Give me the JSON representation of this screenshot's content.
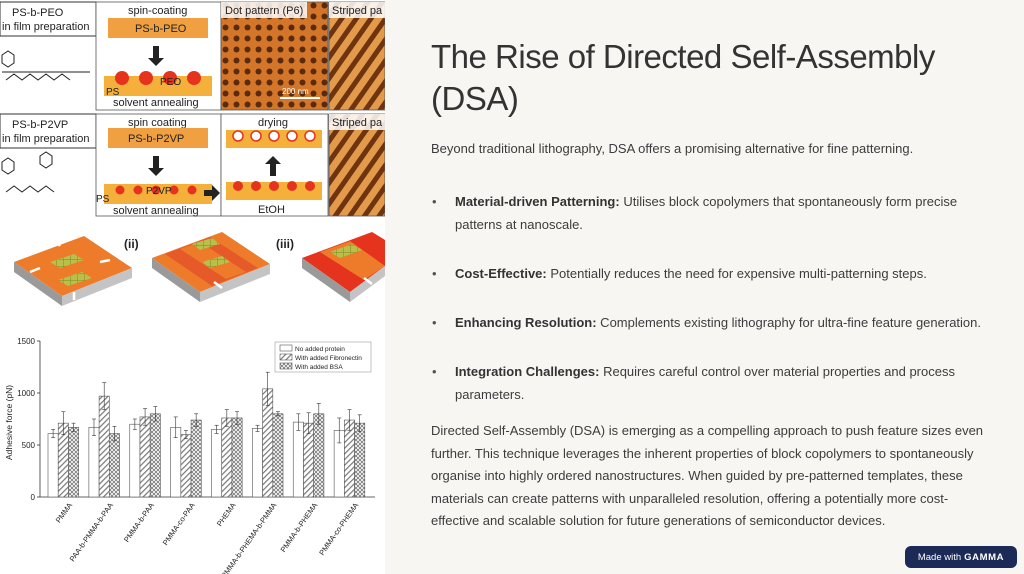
{
  "slide": {
    "title": "The Rise of Directed Self-Assembly (DSA)",
    "subtitle": "Beyond traditional lithography, DSA offers a promising alternative for fine patterning.",
    "bullets": [
      {
        "label": "Material-driven Patterning:",
        "text": " Utilises block copolymers that spontaneously form precise patterns at nanoscale."
      },
      {
        "label": "Cost-Effective:",
        "text": " Potentially reduces the need for expensive multi-patterning steps."
      },
      {
        "label": "Enhancing Resolution:",
        "text": " Complements existing lithography for ultra-fine feature generation."
      },
      {
        "label": "Integration Challenges:",
        "text": " Requires careful control over material properties and process parameters."
      }
    ],
    "paragraph": "Directed Self-Assembly (DSA) is emerging as a compelling approach to push feature sizes even further. This technique leverages the inherent properties of block copolymers to spontaneously organise into highly ordered nanostructures. When guided by pre-patterned templates, these materials can create patterns with unparalleled resolution, offering a potentially more cost-effective and scalable solution for future generations of semiconductor devices."
  },
  "badge": {
    "prefix": "Made with",
    "brand": "GAMMA"
  },
  "figure": {
    "peo": {
      "label1": "PS-b-PEO",
      "label2": "in film preparation",
      "step": "spin-coating",
      "film": "PS-b-PEO",
      "annealing": "solvent annealing",
      "ps": "PS",
      "peo": "PEO",
      "pattern": "Dot pattern (P6)",
      "striped": "Striped pa",
      "scale": "200 nm"
    },
    "p2vp": {
      "label1": "PS-b-P2VP",
      "label2": "in film preparation",
      "step": "spin coating",
      "film": "PS-b-P2VP",
      "drying": "drying",
      "annealing": "solvent annealing",
      "ps": "PS",
      "p2vp": "P2VP",
      "etoh": "EtOH",
      "striped": "Striped pa"
    },
    "panels": [
      "(ii)",
      "(iii)"
    ],
    "chart_data": {
      "type": "bar",
      "ylabel": "Adhesive force (pN)",
      "ylim": [
        0,
        1500
      ],
      "yticks": [
        0,
        500,
        1000,
        1500
      ],
      "categories": [
        "PMMA",
        "PAA-b-PMMA-b-PAA",
        "PMMA-b-PAA",
        "PMMA-co-PAA",
        "PHEMA",
        "PMMA-b-PHEMA-b-PMMA",
        "PMMA-b-PHEMA",
        "PMMA-co-PHEMA"
      ],
      "series": [
        {
          "name": "No added protein",
          "values": [
            610,
            670,
            700,
            670,
            650,
            660,
            720,
            640
          ]
        },
        {
          "name": "With added Fibronectin",
          "values": [
            710,
            970,
            770,
            600,
            760,
            1040,
            710,
            740
          ]
        },
        {
          "name": "With added BSA",
          "values": [
            670,
            610,
            800,
            740,
            760,
            800,
            800,
            710
          ]
        }
      ],
      "errors": [
        [
          40,
          80,
          50,
          100,
          40,
          30,
          80,
          120
        ],
        [
          110,
          130,
          80,
          40,
          80,
          160,
          100,
          100
        ],
        [
          40,
          70,
          70,
          60,
          60,
          20,
          100,
          80
        ]
      ]
    }
  }
}
